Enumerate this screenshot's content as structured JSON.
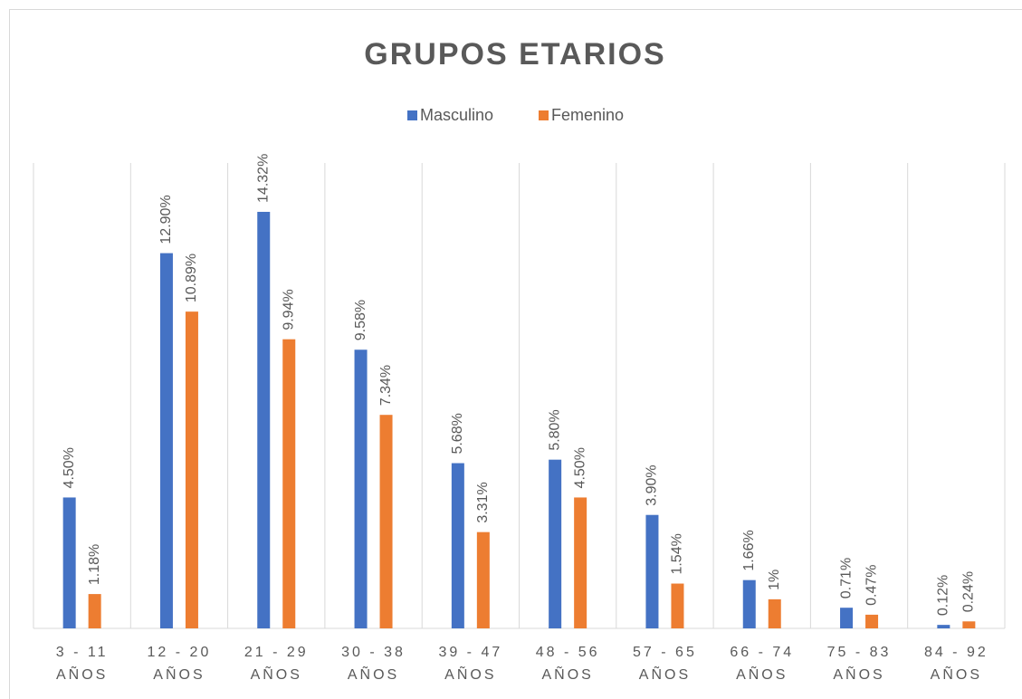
{
  "chart_data": {
    "type": "bar",
    "title": "GRUPOS ETARIOS",
    "categories": [
      "3 - 11\nAÑOS",
      "12 - 20\nAÑOS",
      "21 - 29\nAÑOS",
      "30 - 38\nAÑOS",
      "39 - 47\nAÑOS",
      "48 - 56\nAÑOS",
      "57 - 65\nAÑOS",
      "66 - 74\nAÑOS",
      "75 - 83\nAÑOS",
      "84 - 92\nAÑOS"
    ],
    "series": [
      {
        "name": "Masculino",
        "color": "#4472c4",
        "values": [
          4.5,
          12.9,
          14.32,
          9.58,
          5.68,
          5.8,
          3.9,
          1.66,
          0.71,
          0.12
        ],
        "value_labels": [
          "4.50%",
          "12.90%",
          "14.32%",
          "9.58%",
          "5.68%",
          "5.80%",
          "3.90%",
          "1.66%",
          "0.71%",
          "0.12%"
        ]
      },
      {
        "name": "Femenino",
        "color": "#ed7d31",
        "values": [
          1.18,
          10.89,
          9.94,
          7.34,
          3.31,
          4.5,
          1.54,
          1,
          0.47,
          0.24
        ],
        "value_labels": [
          "1.18%",
          "10.89%",
          "9.94%",
          "7.34%",
          "3.31%",
          "4.50%",
          "1.54%",
          "1%",
          "0.47%",
          "0.24%"
        ]
      }
    ],
    "ylim": [
      0,
      16
    ],
    "legend": "top"
  }
}
